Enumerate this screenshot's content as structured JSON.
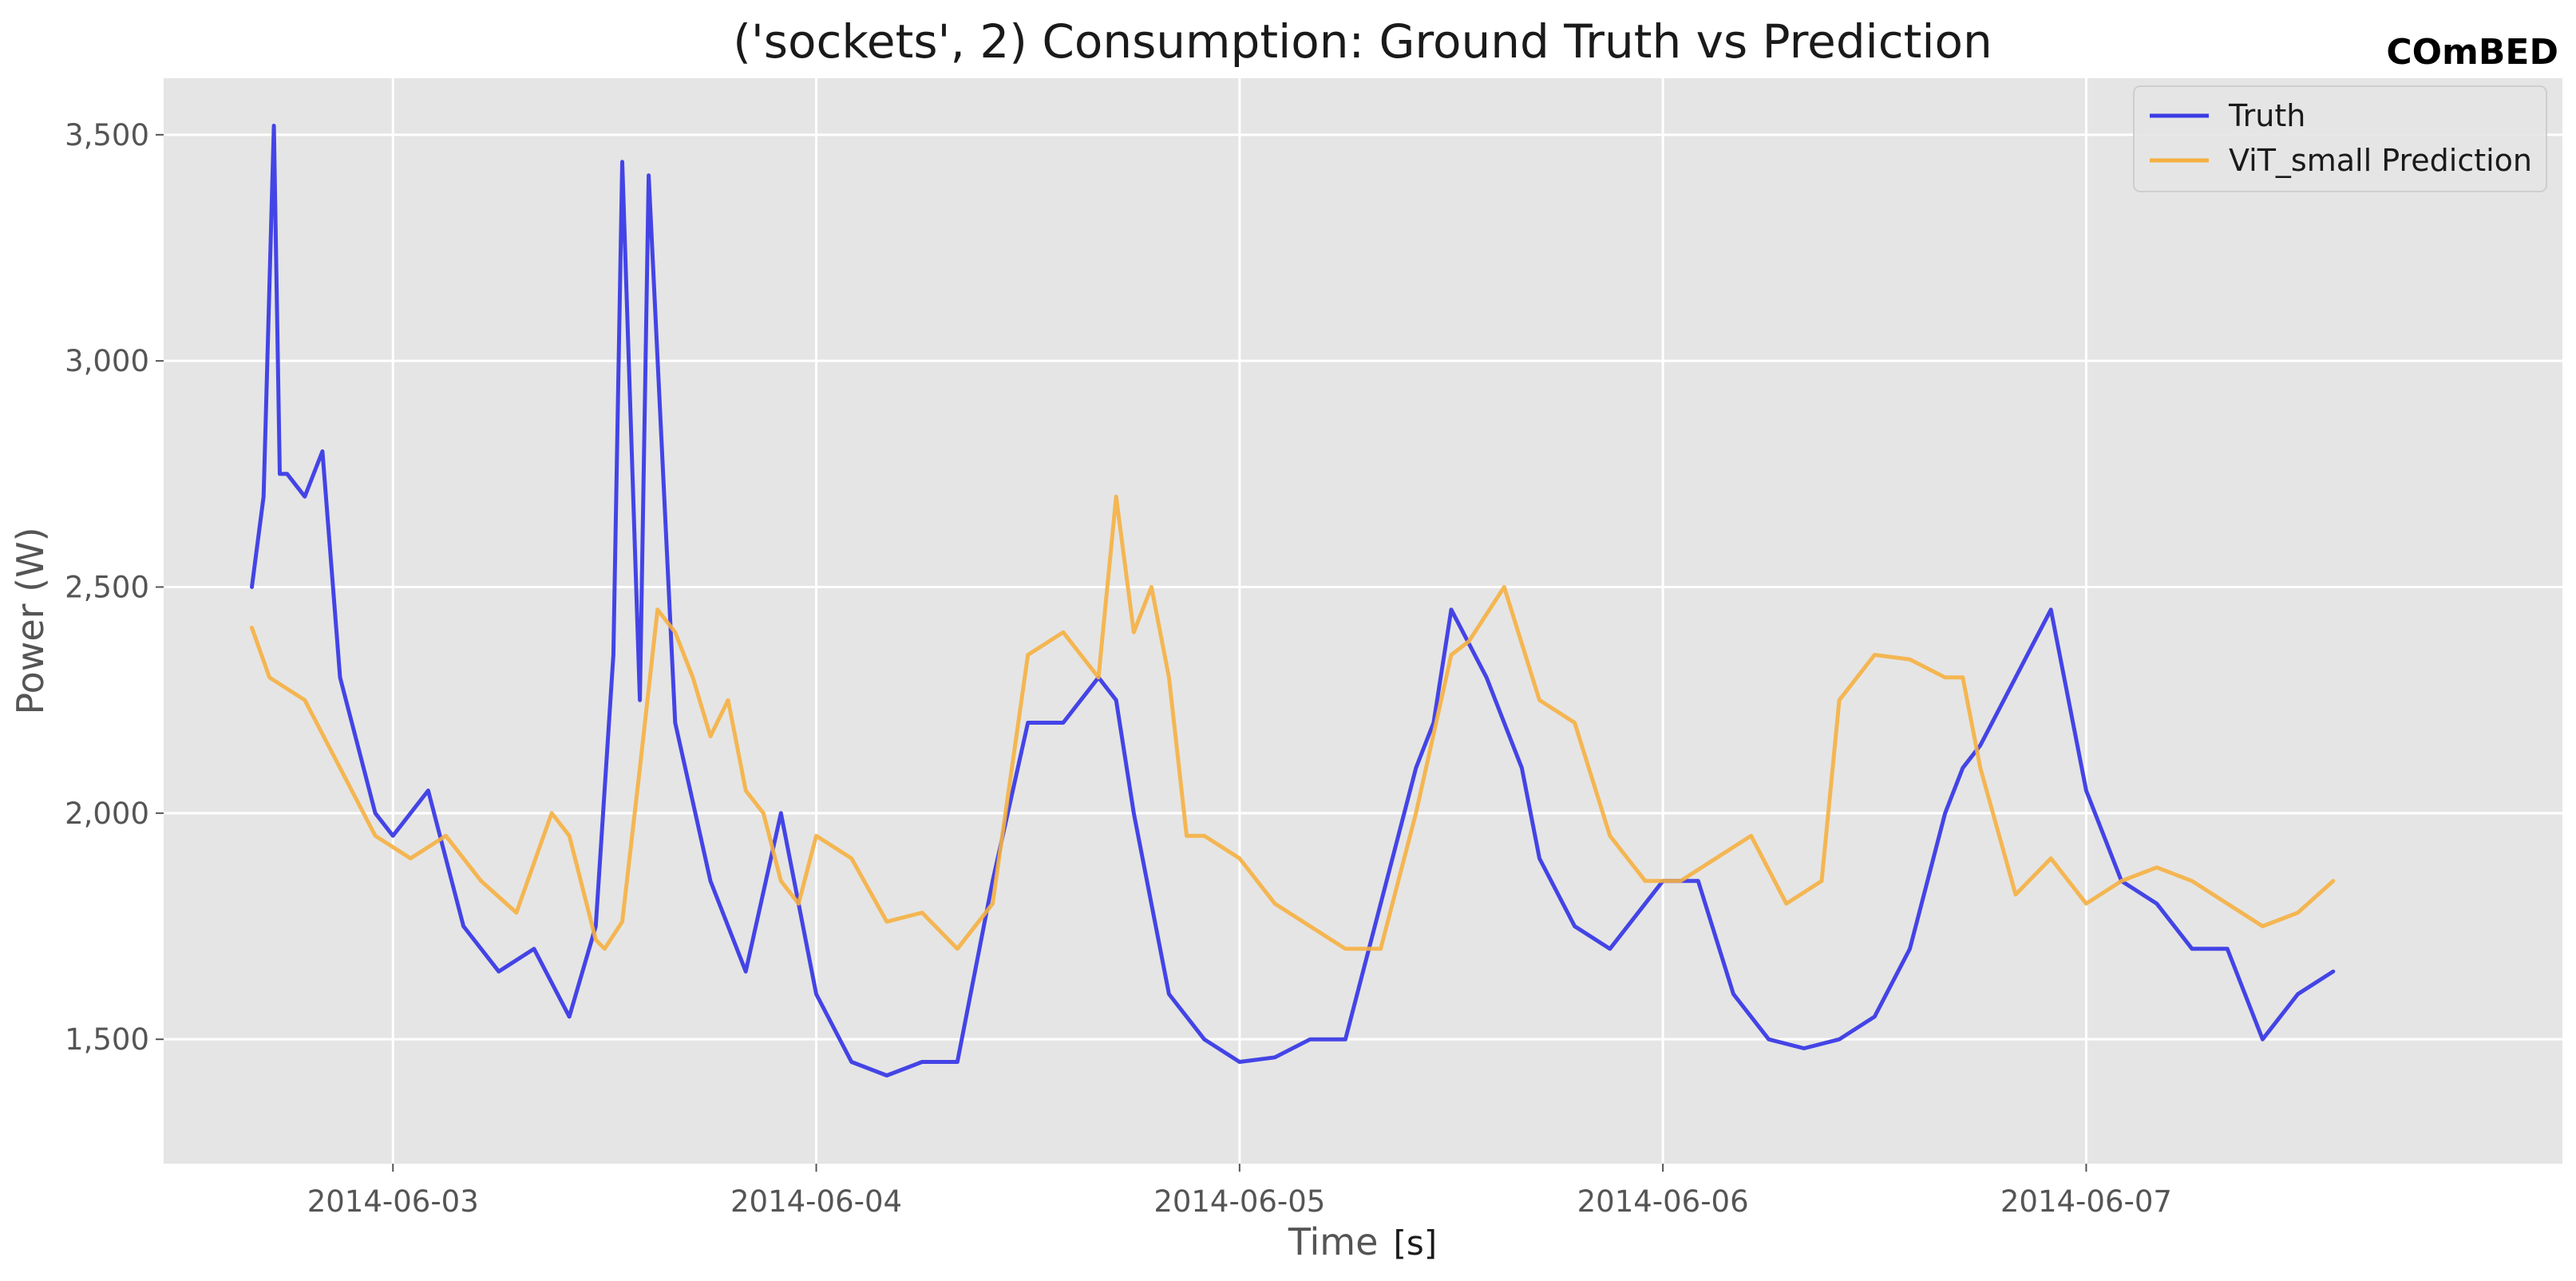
{
  "watermark": "COmBED",
  "chart_data": {
    "type": "line",
    "title": "('sockets', 2) Consumption: Ground Truth vs Prediction",
    "xlabel": "Time",
    "xlabel_unit": "[s]",
    "ylabel": "Power (W)",
    "x_range": [
      "2014-06-02T11:00",
      "2014-06-08T03:00"
    ],
    "ylim": [
      1225,
      3625
    ],
    "x_ticks": [
      "2014-06-03",
      "2014-06-04",
      "2014-06-05",
      "2014-06-06",
      "2014-06-07"
    ],
    "y_ticks": [
      1500,
      2000,
      2500,
      3000,
      3500
    ],
    "y_tick_labels": [
      "1,500",
      "2,000",
      "2,500",
      "3,000",
      "3,500"
    ],
    "grid": true,
    "legend_position": "top-right",
    "colors": {
      "truth": "#3b3be6",
      "prediction": "#f5b041",
      "plot_bg": "#e5e5e5",
      "grid": "#ffffff"
    },
    "series": [
      {
        "name": "Truth",
        "x": [
          "2014-06-02T16:00",
          "2014-06-02T16:40",
          "2014-06-02T17:15",
          "2014-06-02T17:35",
          "2014-06-02T18:00",
          "2014-06-02T19:00",
          "2014-06-02T20:00",
          "2014-06-02T21:00",
          "2014-06-02T22:00",
          "2014-06-02T23:00",
          "2014-06-03T00:00",
          "2014-06-03T02:00",
          "2014-06-03T04:00",
          "2014-06-03T06:00",
          "2014-06-03T08:00",
          "2014-06-03T10:00",
          "2014-06-03T11:30",
          "2014-06-03T12:30",
          "2014-06-03T13:00",
          "2014-06-03T14:00",
          "2014-06-03T14:30",
          "2014-06-03T16:00",
          "2014-06-03T18:00",
          "2014-06-03T20:00",
          "2014-06-03T22:00",
          "2014-06-04T00:00",
          "2014-06-04T02:00",
          "2014-06-04T04:00",
          "2014-06-04T06:00",
          "2014-06-04T08:00",
          "2014-06-04T10:00",
          "2014-06-04T12:00",
          "2014-06-04T14:00",
          "2014-06-04T16:00",
          "2014-06-04T17:00",
          "2014-06-04T18:00",
          "2014-06-04T20:00",
          "2014-06-04T22:00",
          "2014-06-05T00:00",
          "2014-06-05T02:00",
          "2014-06-05T04:00",
          "2014-06-05T06:00",
          "2014-06-05T08:00",
          "2014-06-05T10:00",
          "2014-06-05T11:00",
          "2014-06-05T12:00",
          "2014-06-05T14:00",
          "2014-06-05T15:30",
          "2014-06-05T16:00",
          "2014-06-05T17:00",
          "2014-06-05T19:00",
          "2014-06-05T21:00",
          "2014-06-06T00:00",
          "2014-06-06T02:00",
          "2014-06-06T04:00",
          "2014-06-06T06:00",
          "2014-06-06T08:00",
          "2014-06-06T10:00",
          "2014-06-06T12:00",
          "2014-06-06T14:00",
          "2014-06-06T16:00",
          "2014-06-06T17:00",
          "2014-06-06T18:00",
          "2014-06-06T20:00",
          "2014-06-06T22:00",
          "2014-06-07T00:00",
          "2014-06-07T02:00",
          "2014-06-07T04:00",
          "2014-06-07T06:00",
          "2014-06-07T08:00",
          "2014-06-07T10:00",
          "2014-06-07T11:00",
          "2014-06-07T12:00",
          "2014-06-07T14:00"
        ],
        "values": [
          2500,
          2700,
          3520,
          2750,
          2750,
          2700,
          2800,
          2300,
          2150,
          2000,
          1950,
          2050,
          1750,
          1650,
          1700,
          1550,
          1750,
          2350,
          3440,
          2250,
          3410,
          2200,
          1850,
          1650,
          2000,
          1600,
          1450,
          1420,
          1450,
          1450,
          1850,
          2200,
          2200,
          2300,
          2250,
          2000,
          1600,
          1500,
          1450,
          1460,
          1500,
          1500,
          1800,
          2100,
          2200,
          2450,
          2300,
          2150,
          2100,
          1900,
          1750,
          1700,
          1850,
          1850,
          1600,
          1500,
          1480,
          1500,
          1550,
          1700,
          2000,
          2100,
          2150,
          2300,
          2450,
          2050,
          1850,
          1800,
          1700,
          1700,
          1500,
          1550,
          1600,
          1650
        ]
      },
      {
        "name": "ViT_small Prediction",
        "x": [
          "2014-06-02T16:00",
          "2014-06-02T17:00",
          "2014-06-02T19:00",
          "2014-06-02T21:00",
          "2014-06-02T23:00",
          "2014-06-03T01:00",
          "2014-06-03T03:00",
          "2014-06-03T05:00",
          "2014-06-03T07:00",
          "2014-06-03T09:00",
          "2014-06-03T10:00",
          "2014-06-03T11:30",
          "2014-06-03T12:00",
          "2014-06-03T13:00",
          "2014-06-03T14:00",
          "2014-06-03T15:00",
          "2014-06-03T16:00",
          "2014-06-03T17:00",
          "2014-06-03T18:00",
          "2014-06-03T19:00",
          "2014-06-03T20:00",
          "2014-06-03T21:00",
          "2014-06-03T22:00",
          "2014-06-03T23:00",
          "2014-06-04T00:00",
          "2014-06-04T02:00",
          "2014-06-04T04:00",
          "2014-06-04T06:00",
          "2014-06-04T08:00",
          "2014-06-04T10:00",
          "2014-06-04T12:00",
          "2014-06-04T14:00",
          "2014-06-04T16:00",
          "2014-06-04T17:00",
          "2014-06-04T18:00",
          "2014-06-04T19:00",
          "2014-06-04T20:00",
          "2014-06-04T21:00",
          "2014-06-04T22:00",
          "2014-06-05T00:00",
          "2014-06-05T02:00",
          "2014-06-05T04:00",
          "2014-06-05T06:00",
          "2014-06-05T08:00",
          "2014-06-05T10:00",
          "2014-06-05T12:00",
          "2014-06-05T13:00",
          "2014-06-05T15:00",
          "2014-06-05T17:00",
          "2014-06-05T19:00",
          "2014-06-05T21:00",
          "2014-06-05T23:00",
          "2014-06-06T01:00",
          "2014-06-06T03:00",
          "2014-06-06T05:00",
          "2014-06-06T07:00",
          "2014-06-06T09:00",
          "2014-06-06T10:00",
          "2014-06-06T12:00",
          "2014-06-06T14:00",
          "2014-06-06T16:00",
          "2014-06-06T17:00",
          "2014-06-06T18:00",
          "2014-06-06T20:00",
          "2014-06-06T22:00",
          "2014-06-07T00:00",
          "2014-06-07T02:00",
          "2014-06-07T04:00",
          "2014-06-07T06:00",
          "2014-06-07T08:00",
          "2014-06-07T10:00",
          "2014-06-07T12:00",
          "2014-06-07T14:00"
        ],
        "values": [
          2410,
          2300,
          2250,
          2100,
          1950,
          1900,
          1950,
          1850,
          1780,
          2000,
          1950,
          1720,
          1700,
          1760,
          2100,
          2450,
          2400,
          2300,
          2170,
          2250,
          2050,
          2000,
          1850,
          1800,
          1950,
          1900,
          1760,
          1780,
          1700,
          1800,
          2350,
          2400,
          2300,
          2700,
          2400,
          2500,
          2300,
          1950,
          1950,
          1900,
          1800,
          1750,
          1700,
          1700,
          2000,
          2350,
          2380,
          2500,
          2250,
          2200,
          1950,
          1850,
          1850,
          1900,
          1950,
          1800,
          1850,
          2250,
          2350,
          2340,
          2300,
          2300,
          2100,
          1820,
          1900,
          1800,
          1850,
          1880,
          1850,
          1800,
          1750,
          1780,
          1850
        ]
      }
    ]
  }
}
